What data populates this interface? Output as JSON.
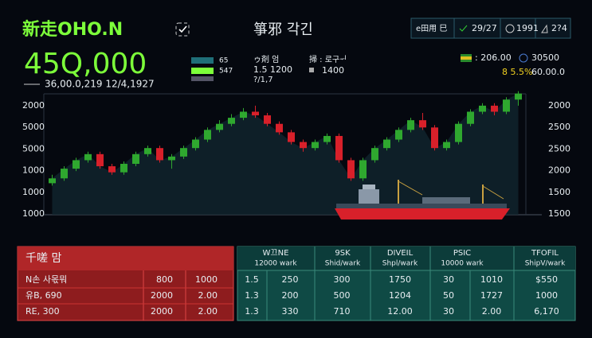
{
  "header": {
    "title": "新走OHO.N",
    "center_title": "箏邪 각긴",
    "toolbar": [
      "e田用 巳",
      "29/27",
      "1991",
      "2?4"
    ]
  },
  "summary": {
    "price": "45Q,000",
    "sub": "36,00.0,219 12/4,1927",
    "legend_values": [
      "65",
      "547"
    ],
    "mid_lines": [
      "ゥ剤 엄",
      "1.5 1200",
      "?/1,7"
    ],
    "right_lines": [
      "掃 : 로구ᅱ",
      "1400"
    ],
    "quote_a": ": 206.00",
    "quote_b": "30500",
    "change": "8 5.5%",
    "quote_c": "60.00.0"
  },
  "chart": {
    "type": "candlestick",
    "up_color": "#2fa82f",
    "down_color": "#d8202a",
    "ylim": [
      0,
      105
    ],
    "left_labels": [
      "2000",
      "5000",
      "5000",
      "1000",
      "1000",
      "1000"
    ],
    "right_labels": [
      "2000",
      "2500",
      "2500",
      "2000",
      "1500",
      "1500"
    ],
    "candles": [
      {
        "o": 26,
        "h": 33,
        "l": 24,
        "c": 30
      },
      {
        "o": 30,
        "h": 40,
        "l": 28,
        "c": 38
      },
      {
        "o": 38,
        "h": 47,
        "l": 36,
        "c": 45
      },
      {
        "o": 45,
        "h": 52,
        "l": 43,
        "c": 50
      },
      {
        "o": 50,
        "h": 52,
        "l": 38,
        "c": 40
      },
      {
        "o": 40,
        "h": 42,
        "l": 33,
        "c": 35
      },
      {
        "o": 35,
        "h": 44,
        "l": 33,
        "c": 42
      },
      {
        "o": 42,
        "h": 52,
        "l": 40,
        "c": 50
      },
      {
        "o": 50,
        "h": 57,
        "l": 48,
        "c": 55
      },
      {
        "o": 55,
        "h": 57,
        "l": 43,
        "c": 45
      },
      {
        "o": 45,
        "h": 50,
        "l": 38,
        "c": 48
      },
      {
        "o": 48,
        "h": 57,
        "l": 46,
        "c": 55
      },
      {
        "o": 55,
        "h": 64,
        "l": 53,
        "c": 62
      },
      {
        "o": 62,
        "h": 72,
        "l": 60,
        "c": 70
      },
      {
        "o": 70,
        "h": 78,
        "l": 68,
        "c": 75
      },
      {
        "o": 75,
        "h": 83,
        "l": 73,
        "c": 80
      },
      {
        "o": 80,
        "h": 88,
        "l": 78,
        "c": 85
      },
      {
        "o": 85,
        "h": 90,
        "l": 80,
        "c": 82
      },
      {
        "o": 82,
        "h": 84,
        "l": 73,
        "c": 75
      },
      {
        "o": 75,
        "h": 77,
        "l": 66,
        "c": 68
      },
      {
        "o": 68,
        "h": 70,
        "l": 58,
        "c": 60
      },
      {
        "o": 60,
        "h": 62,
        "l": 52,
        "c": 55
      },
      {
        "o": 55,
        "h": 62,
        "l": 53,
        "c": 60
      },
      {
        "o": 60,
        "h": 67,
        "l": 58,
        "c": 65
      },
      {
        "o": 65,
        "h": 67,
        "l": 43,
        "c": 45
      },
      {
        "o": 45,
        "h": 47,
        "l": 28,
        "c": 30
      },
      {
        "o": 30,
        "h": 47,
        "l": 28,
        "c": 45
      },
      {
        "o": 45,
        "h": 57,
        "l": 43,
        "c": 55
      },
      {
        "o": 55,
        "h": 64,
        "l": 53,
        "c": 62
      },
      {
        "o": 62,
        "h": 72,
        "l": 60,
        "c": 70
      },
      {
        "o": 70,
        "h": 80,
        "l": 68,
        "c": 78
      },
      {
        "o": 78,
        "h": 84,
        "l": 70,
        "c": 72
      },
      {
        "o": 72,
        "h": 74,
        "l": 53,
        "c": 55
      },
      {
        "o": 55,
        "h": 62,
        "l": 53,
        "c": 60
      },
      {
        "o": 60,
        "h": 77,
        "l": 58,
        "c": 75
      },
      {
        "o": 75,
        "h": 87,
        "l": 73,
        "c": 85
      },
      {
        "o": 85,
        "h": 92,
        "l": 83,
        "c": 90
      },
      {
        "o": 90,
        "h": 92,
        "l": 82,
        "c": 85
      },
      {
        "o": 85,
        "h": 97,
        "l": 83,
        "c": 95
      },
      {
        "o": 95,
        "h": 102,
        "l": 90,
        "c": 100
      }
    ]
  },
  "table": {
    "left": {
      "title": "千嗟 맘",
      "rows": [
        [
          "N손 사몫뭐",
          "800",
          "1000"
        ],
        [
          "유B, 690",
          "2000",
          "2.00"
        ],
        [
          "RE, 300",
          "2000",
          "2.00"
        ]
      ]
    },
    "right": {
      "headers": [
        [
          "W끄NE",
          "12000 wark"
        ],
        [
          "9SK",
          "Shid/wark"
        ],
        [
          "DIVEIL",
          "Shpl/wark"
        ],
        [
          "PSIC",
          "10000 wark"
        ],
        [
          "TFOFIL",
          "ShipV/wark"
        ]
      ],
      "rows": [
        [
          "1.5",
          "250",
          "300",
          "1750",
          "30",
          "1010",
          "$550"
        ],
        [
          "1.3",
          "200",
          "500",
          "1204",
          "50",
          "1727",
          "1000"
        ],
        [
          "1.3",
          "330",
          "710",
          "12.00",
          "30",
          "2.00",
          "6,170"
        ]
      ]
    }
  }
}
